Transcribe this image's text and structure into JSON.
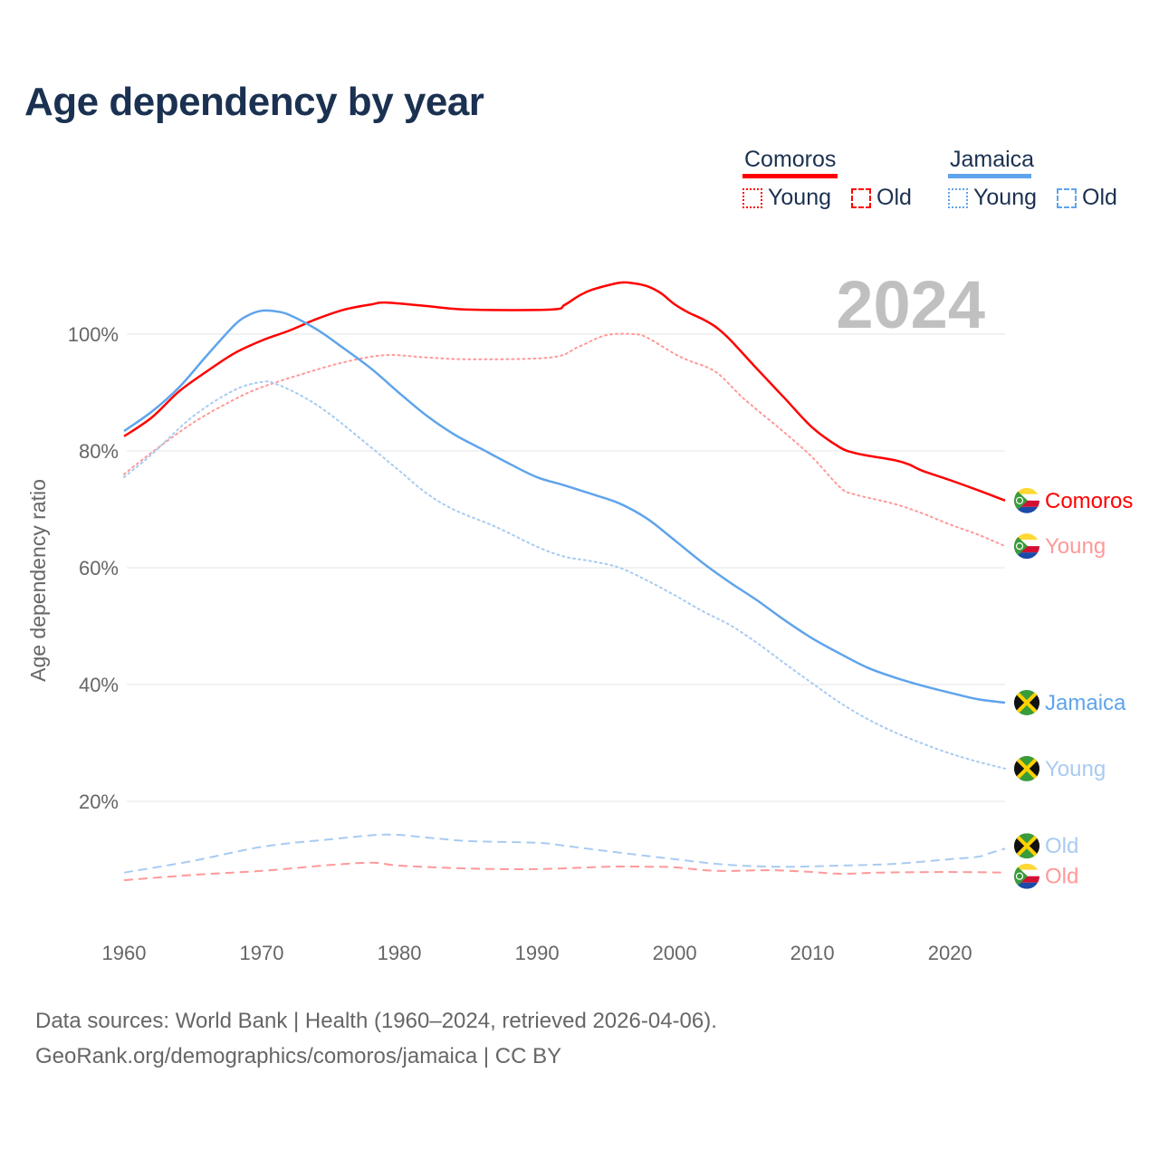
{
  "title": "Age dependency by year",
  "year_label": "2024",
  "legend": {
    "countries": [
      {
        "name": "Comoros",
        "color": "#ff0000",
        "items": [
          "Young",
          "Old"
        ]
      },
      {
        "name": "Jamaica",
        "color": "#5fa4ec",
        "items": [
          "Young",
          "Old"
        ]
      }
    ]
  },
  "footer": {
    "line1": "Data sources: World Bank | Health (1960–2024, retrieved 2026-04-06).",
    "line2": "GeoRank.org/demographics/comoros/jamaica | CC BY"
  },
  "chart_data": {
    "type": "line",
    "title": "Age dependency by year",
    "xlabel": "",
    "ylabel": "Age dependency ratio",
    "xlim": [
      1960,
      2024
    ],
    "ylim": [
      0,
      110
    ],
    "x_ticks": [
      "1960",
      "1970",
      "1980",
      "1990",
      "2000",
      "2010",
      "2020"
    ],
    "y_ticks": [
      "20%",
      "40%",
      "60%",
      "80%",
      "100%"
    ],
    "grid": true,
    "legend_position": "top-right",
    "series": [
      {
        "name": "Comoros",
        "label": "Comoros",
        "country": "comoros",
        "style": "solid",
        "color": "#ff0000",
        "points": [
          [
            1960,
            82.5
          ],
          [
            1962,
            85.7
          ],
          [
            1964,
            90.2
          ],
          [
            1966,
            93.6
          ],
          [
            1968,
            96.7
          ],
          [
            1970,
            98.9
          ],
          [
            1972,
            100.6
          ],
          [
            1974,
            102.6
          ],
          [
            1976,
            104.2
          ],
          [
            1978,
            105.1
          ],
          [
            1979,
            105.4
          ],
          [
            1982,
            104.8
          ],
          [
            1985,
            104.2
          ],
          [
            1991,
            104.2
          ],
          [
            1992,
            105
          ],
          [
            1993,
            106.5
          ],
          [
            1994,
            107.6
          ],
          [
            1996,
            108.8
          ],
          [
            1997,
            108.7
          ],
          [
            1998,
            108.2
          ],
          [
            1999,
            107
          ],
          [
            2000,
            105.1
          ],
          [
            2001,
            103.7
          ],
          [
            2002,
            102.6
          ],
          [
            2003,
            101.2
          ],
          [
            2004,
            99.1
          ],
          [
            2006,
            94
          ],
          [
            2008,
            89
          ],
          [
            2010,
            84
          ],
          [
            2012,
            80.6
          ],
          [
            2013,
            79.7
          ],
          [
            2014,
            79.2
          ],
          [
            2016,
            78.4
          ],
          [
            2017,
            77.7
          ],
          [
            2018,
            76.6
          ],
          [
            2020,
            75
          ],
          [
            2022,
            73.3
          ],
          [
            2024,
            71.5
          ]
        ]
      },
      {
        "name": "Comoros Young",
        "label": "Young",
        "country": "comoros",
        "style": "dotted",
        "color": "#ff9999",
        "points": [
          [
            1960,
            76
          ],
          [
            1962,
            79.7
          ],
          [
            1965,
            84.8
          ],
          [
            1968,
            88.8
          ],
          [
            1970,
            90.9
          ],
          [
            1973,
            93.2
          ],
          [
            1976,
            95.2
          ],
          [
            1979,
            96.4
          ],
          [
            1982,
            96
          ],
          [
            1985,
            95.7
          ],
          [
            1991,
            96
          ],
          [
            1993,
            97.8
          ],
          [
            1995,
            99.8
          ],
          [
            1997,
            100
          ],
          [
            1998,
            99.4
          ],
          [
            2000,
            96.6
          ],
          [
            2001,
            95.5
          ],
          [
            2003,
            93.5
          ],
          [
            2005,
            89
          ],
          [
            2008,
            83.1
          ],
          [
            2010,
            78.9
          ],
          [
            2012,
            73.8
          ],
          [
            2013,
            72.6
          ],
          [
            2016,
            70.9
          ],
          [
            2018,
            69.3
          ],
          [
            2020,
            67.4
          ],
          [
            2022,
            65.7
          ],
          [
            2024,
            63.7
          ]
        ]
      },
      {
        "name": "Comoros Old",
        "label": "Old",
        "country": "comoros",
        "style": "dashed",
        "color": "#ff9999",
        "points": [
          [
            1960,
            6.5
          ],
          [
            1965,
            7.4
          ],
          [
            1970,
            8.1
          ],
          [
            1975,
            9.1
          ],
          [
            1978,
            9.5
          ],
          [
            1980,
            9
          ],
          [
            1985,
            8.5
          ],
          [
            1990,
            8.4
          ],
          [
            1995,
            8.8
          ],
          [
            1998,
            8.8
          ],
          [
            2000,
            8.7
          ],
          [
            2003,
            8.1
          ],
          [
            2007,
            8.2
          ],
          [
            2010,
            7.9
          ],
          [
            2012,
            7.6
          ],
          [
            2015,
            7.8
          ],
          [
            2020,
            7.9
          ],
          [
            2024,
            7.8
          ]
        ]
      },
      {
        "name": "Jamaica",
        "label": "Jamaica",
        "country": "jamaica",
        "style": "solid",
        "color": "#5fa4ec",
        "points": [
          [
            1960,
            83.4
          ],
          [
            1962,
            86.7
          ],
          [
            1964,
            90.9
          ],
          [
            1966,
            96.3
          ],
          [
            1968,
            101.5
          ],
          [
            1969,
            103.2
          ],
          [
            1970,
            104
          ],
          [
            1971,
            103.9
          ],
          [
            1972,
            103.3
          ],
          [
            1974,
            100.8
          ],
          [
            1976,
            97.5
          ],
          [
            1978,
            94
          ],
          [
            1980,
            89.9
          ],
          [
            1982,
            86
          ],
          [
            1984,
            82.8
          ],
          [
            1986,
            80.3
          ],
          [
            1988,
            77.8
          ],
          [
            1990,
            75.5
          ],
          [
            1992,
            74.1
          ],
          [
            1994,
            72.6
          ],
          [
            1996,
            71
          ],
          [
            1998,
            68.4
          ],
          [
            2000,
            64.7
          ],
          [
            2002,
            60.9
          ],
          [
            2004,
            57.5
          ],
          [
            2006,
            54.4
          ],
          [
            2008,
            51
          ],
          [
            2010,
            47.9
          ],
          [
            2012,
            45.3
          ],
          [
            2014,
            42.9
          ],
          [
            2016,
            41.2
          ],
          [
            2018,
            39.8
          ],
          [
            2020,
            38.6
          ],
          [
            2022,
            37.5
          ],
          [
            2024,
            36.9
          ]
        ]
      },
      {
        "name": "Jamaica Young",
        "label": "Young",
        "country": "jamaica",
        "style": "dotted",
        "color": "#a8cbf2",
        "points": [
          [
            1960,
            75.5
          ],
          [
            1962,
            79.4
          ],
          [
            1965,
            85.9
          ],
          [
            1968,
            90.4
          ],
          [
            1970,
            91.8
          ],
          [
            1971,
            91.5
          ],
          [
            1973,
            89.3
          ],
          [
            1975,
            86.2
          ],
          [
            1978,
            80.5
          ],
          [
            1980,
            76.6
          ],
          [
            1982,
            72.7
          ],
          [
            1984,
            69.9
          ],
          [
            1987,
            67
          ],
          [
            1990,
            63.6
          ],
          [
            1992,
            61.9
          ],
          [
            1994,
            61.1
          ],
          [
            1996,
            60
          ],
          [
            1998,
            57.8
          ],
          [
            2000,
            55.3
          ],
          [
            2002,
            52.6
          ],
          [
            2004,
            50.2
          ],
          [
            2006,
            47.1
          ],
          [
            2008,
            43.6
          ],
          [
            2010,
            40.2
          ],
          [
            2012,
            36.9
          ],
          [
            2014,
            34.1
          ],
          [
            2016,
            31.8
          ],
          [
            2018,
            29.9
          ],
          [
            2020,
            28.2
          ],
          [
            2022,
            26.8
          ],
          [
            2024,
            25.6
          ]
        ]
      },
      {
        "name": "Jamaica Old",
        "label": "Old",
        "country": "jamaica",
        "style": "dashed",
        "color": "#a8cbf2",
        "points": [
          [
            1960,
            7.8
          ],
          [
            1965,
            9.8
          ],
          [
            1970,
            12.2
          ],
          [
            1975,
            13.5
          ],
          [
            1979,
            14.3
          ],
          [
            1982,
            13.8
          ],
          [
            1985,
            13.2
          ],
          [
            1990,
            12.9
          ],
          [
            1992,
            12.4
          ],
          [
            1995,
            11.5
          ],
          [
            2000,
            10.1
          ],
          [
            2004,
            9.1
          ],
          [
            2008,
            8.8
          ],
          [
            2012,
            9
          ],
          [
            2016,
            9.3
          ],
          [
            2020,
            10.1
          ],
          [
            2022,
            10.5
          ],
          [
            2023,
            11.2
          ],
          [
            2024,
            11.9
          ]
        ]
      }
    ]
  }
}
